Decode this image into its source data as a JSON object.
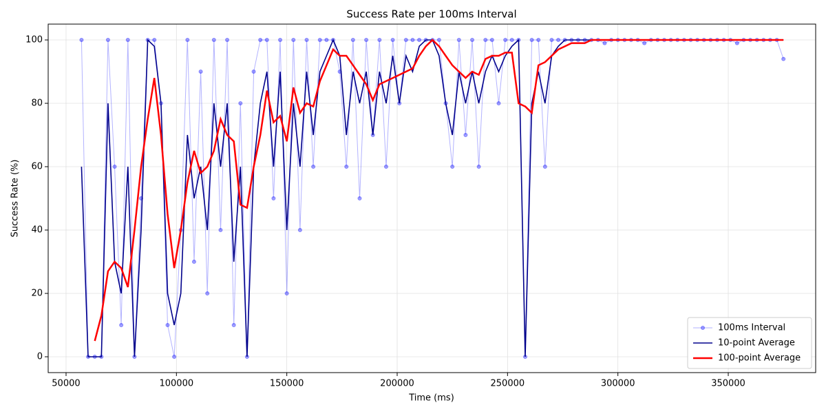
{
  "chart_data": {
    "type": "line",
    "title": "Success Rate per 100ms Interval",
    "xlabel": "Time (ms)",
    "ylabel": "Success Rate (%)",
    "x": [
      57000,
      60000,
      63000,
      66000,
      69000,
      72000,
      75000,
      78000,
      81000,
      84000,
      87000,
      90000,
      93000,
      96000,
      99000,
      102000,
      105000,
      108000,
      111000,
      114000,
      117000,
      120000,
      123000,
      126000,
      129000,
      132000,
      135000,
      138000,
      141000,
      144000,
      147000,
      150000,
      153000,
      156000,
      159000,
      162000,
      165000,
      168000,
      171000,
      174000,
      177000,
      180000,
      183000,
      186000,
      189000,
      192000,
      195000,
      198000,
      201000,
      204000,
      207000,
      210000,
      213000,
      216000,
      219000,
      222000,
      225000,
      228000,
      231000,
      234000,
      237000,
      240000,
      243000,
      246000,
      249000,
      252000,
      255000,
      258000,
      261000,
      264000,
      267000,
      270000,
      273000,
      276000,
      279000,
      282000,
      285000,
      288000,
      291000,
      294000,
      297000,
      300000,
      303000,
      306000,
      309000,
      312000,
      315000,
      318000,
      321000,
      324000,
      327000,
      330000,
      333000,
      336000,
      339000,
      342000,
      345000,
      348000,
      351000,
      354000,
      357000,
      360000,
      363000,
      366000,
      369000,
      372000,
      375000
    ],
    "series": [
      {
        "name": "100ms Interval",
        "color": "#0000ff",
        "style": "markers",
        "values": [
          100,
          0,
          0,
          0,
          100,
          60,
          10,
          100,
          0,
          50,
          100,
          100,
          80,
          10,
          0,
          40,
          100,
          30,
          90,
          20,
          100,
          40,
          100,
          10,
          80,
          0,
          90,
          100,
          100,
          50,
          100,
          20,
          100,
          40,
          100,
          60,
          100,
          100,
          100,
          90,
          60,
          100,
          50,
          100,
          70,
          100,
          60,
          100,
          80,
          100,
          100,
          100,
          100,
          100,
          100,
          80,
          60,
          100,
          70,
          100,
          60,
          100,
          100,
          80,
          100,
          100,
          100,
          0,
          100,
          100,
          60,
          100,
          100,
          100,
          100,
          100,
          100,
          100,
          100,
          99,
          100,
          100,
          100,
          100,
          100,
          99,
          100,
          100,
          100,
          100,
          100,
          100,
          100,
          100,
          100,
          100,
          100,
          100,
          100,
          99,
          100,
          100,
          100,
          100,
          100,
          100,
          94
        ]
      },
      {
        "name": "10-point Average",
        "color": "#00008b",
        "style": "line",
        "values": [
          60,
          0,
          0,
          0,
          80,
          30,
          20,
          60,
          0,
          40,
          100,
          98,
          80,
          20,
          10,
          20,
          70,
          50,
          60,
          40,
          80,
          60,
          80,
          30,
          60,
          0,
          60,
          80,
          90,
          60,
          90,
          40,
          80,
          60,
          90,
          70,
          90,
          95,
          100,
          95,
          70,
          90,
          80,
          90,
          70,
          90,
          80,
          95,
          80,
          95,
          90,
          98,
          100,
          100,
          95,
          80,
          70,
          90,
          80,
          90,
          80,
          90,
          95,
          90,
          95,
          98,
          100,
          0,
          80,
          90,
          80,
          95,
          98,
          100,
          100,
          100,
          100,
          100,
          100,
          100,
          100,
          100,
          100,
          100,
          100,
          100,
          100,
          100,
          100,
          100,
          100,
          100,
          100,
          100,
          100,
          100,
          100,
          100,
          100,
          100,
          100,
          100,
          100,
          100,
          100,
          100,
          100
        ]
      },
      {
        "name": "100-point Average",
        "color": "#ff0000",
        "style": "thick",
        "values": [
          null,
          null,
          5,
          13,
          27,
          30,
          28,
          22,
          40,
          60,
          75,
          88,
          70,
          45,
          28,
          40,
          55,
          65,
          58,
          60,
          65,
          75,
          70,
          68,
          48,
          47,
          60,
          70,
          84,
          74,
          76,
          68,
          85,
          77,
          80,
          79,
          87,
          92,
          97,
          95,
          95,
          92,
          89,
          86,
          81,
          86,
          87,
          88,
          89,
          90,
          91,
          95,
          98,
          100,
          98,
          95,
          92,
          90,
          88,
          90,
          89,
          94,
          95,
          95,
          96,
          96,
          80,
          79,
          77,
          92,
          93,
          95,
          97,
          98,
          99,
          99,
          99,
          100,
          100,
          100,
          100,
          100,
          100,
          100,
          100,
          100,
          100,
          100,
          100,
          100,
          100,
          100,
          100,
          100,
          100,
          100,
          100,
          100,
          100,
          100,
          100,
          100,
          100,
          100,
          100,
          100,
          100
        ]
      }
    ],
    "xlim": [
      41900,
      389600
    ],
    "ylim": [
      -5,
      105
    ],
    "xticks": [
      50000,
      100000,
      150000,
      200000,
      250000,
      300000,
      350000
    ],
    "yticks": [
      0,
      20,
      40,
      60,
      80,
      100
    ],
    "grid": true,
    "legend": "lower right"
  }
}
